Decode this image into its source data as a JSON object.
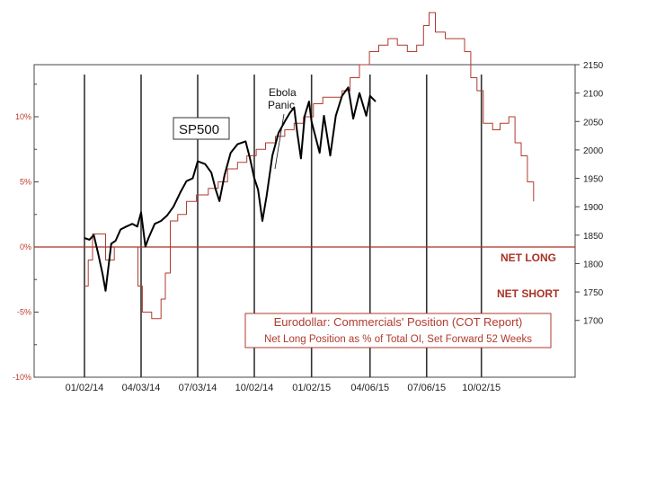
{
  "chart_data": {
    "type": "line",
    "title": "",
    "x_tick_labels": [
      "01/02/14",
      "04/03/14",
      "07/03/14",
      "10/02/14",
      "01/02/15",
      "04/06/15",
      "07/06/15",
      "10/02/15"
    ],
    "left_axis": {
      "ticks": [
        10,
        5,
        0,
        -5,
        -10
      ],
      "tick_labels": [
        "10%",
        "5%",
        "0%",
        "-5%",
        "-10%"
      ],
      "ylim": [
        -10,
        14
      ]
    },
    "right_axis": {
      "ticks": [
        1700,
        1750,
        1800,
        1850,
        1900,
        1950,
        2000,
        2050,
        2100,
        2150
      ],
      "ylim": [
        1600,
        2150
      ]
    },
    "grid": "vertical lines at x tick labels",
    "zero_line_labels": {
      "above": "NET LONG",
      "below": "NET SHORT"
    },
    "annotations": [
      {
        "text_lines": [
          "Ebola",
          "Panic"
        ],
        "date": "10/15/14"
      }
    ],
    "series": [
      {
        "name": "SP500",
        "axis": "right",
        "color": "#000000",
        "x": [
          "01/02/14",
          "01/10/14",
          "01/17/14",
          "01/24/14",
          "01/31/14",
          "02/05/14",
          "02/14/14",
          "02/21/14",
          "03/01/14",
          "03/10/14",
          "03/20/14",
          "03/28/14",
          "04/03/14",
          "04/10/14",
          "04/15/14",
          "04/25/14",
          "05/05/14",
          "05/15/14",
          "05/25/14",
          "06/05/14",
          "06/15/14",
          "06/25/14",
          "07/03/14",
          "07/15/14",
          "07/25/14",
          "08/01/14",
          "08/07/14",
          "08/15/14",
          "08/25/14",
          "09/05/14",
          "09/18/14",
          "09/25/14",
          "10/02/14",
          "10/08/14",
          "10/15/14",
          "10/22/14",
          "10/31/14",
          "11/10/14",
          "11/20/14",
          "11/28/14",
          "12/05/14",
          "12/10/14",
          "12/16/14",
          "12/22/14",
          "12/29/14",
          "01/02/15",
          "01/15/15",
          "01/22/15",
          "02/01/15",
          "02/10/15",
          "02/20/15",
          "03/02/15",
          "03/10/15",
          "03/20/15",
          "03/31/15",
          "04/06/15",
          "04/15/15"
        ],
        "values": [
          1845,
          1842,
          1850,
          1818,
          1782,
          1752,
          1835,
          1840,
          1860,
          1865,
          1870,
          1865,
          1890,
          1830,
          1845,
          1870,
          1875,
          1885,
          1900,
          1925,
          1945,
          1950,
          1980,
          1975,
          1960,
          1930,
          1910,
          1955,
          1995,
          2010,
          2015,
          1985,
          1950,
          1930,
          1875,
          1920,
          1990,
          2030,
          2050,
          2065,
          2075,
          2030,
          1985,
          2060,
          2085,
          2050,
          1995,
          2060,
          1990,
          2060,
          2095,
          2110,
          2055,
          2100,
          2060,
          2095,
          2085
        ]
      },
      {
        "name": "Eurodollar: Commercials' Position (COT Report)",
        "axis": "left",
        "color": "#b03a2e",
        "x": [
          "01/02/14",
          "01/08/14",
          "01/15/14",
          "01/22/14",
          "02/05/14",
          "02/12/14",
          "02/19/14",
          "02/26/14",
          "03/05/14",
          "03/15/14",
          "03/22/14",
          "03/29/14",
          "04/05/14",
          "04/20/14",
          "05/05/14",
          "05/12/14",
          "05/20/14",
          "06/01/14",
          "06/15/14",
          "07/01/14",
          "07/20/14",
          "08/05/14",
          "08/20/14",
          "09/05/14",
          "09/20/14",
          "10/05/14",
          "10/20/14",
          "11/05/14",
          "11/20/14",
          "12/05/14",
          "12/20/14",
          "01/05/15",
          "01/20/15",
          "02/05/15",
          "02/20/15",
          "03/05/15",
          "03/20/15",
          "04/05/15",
          "04/20/15",
          "05/05/15",
          "05/20/15",
          "06/05/15",
          "06/20/15",
          "07/01/15",
          "07/10/15",
          "07/20/15",
          "08/05/15",
          "08/20/15",
          "09/05/15",
          "09/15/15",
          "09/25/15",
          "10/05/15",
          "10/20/15",
          "11/01/15",
          "11/15/15",
          "11/25/15",
          "12/05/15",
          "12/15/15",
          "12/25/15"
        ],
        "values": [
          -3,
          -1,
          1,
          1,
          -1,
          -1,
          0,
          0,
          0,
          0,
          0,
          -3,
          -5,
          -5.5,
          -4,
          -2,
          2,
          2.5,
          3.5,
          4,
          4.5,
          5,
          6,
          6.5,
          7,
          7.5,
          8,
          8.5,
          9,
          9.5,
          10,
          11,
          11.5,
          11.5,
          12,
          13,
          14,
          15,
          15.5,
          16,
          15.5,
          15,
          15.5,
          17,
          18,
          16.5,
          16,
          16,
          15,
          13,
          12,
          9.5,
          9,
          9.5,
          10,
          8,
          7,
          5,
          3.5
        ]
      }
    ]
  },
  "legend": {
    "title": "Eurodollar: Commercials' Position (COT Report)",
    "subtitle": "Net Long Position as % of Total OI, Set Forward 52 Weeks"
  },
  "labels": {
    "sp500": "SP500",
    "ebola_line1": "Ebola",
    "ebola_line2": "Panic",
    "net_long": "NET LONG",
    "net_short": "NET SHORT"
  },
  "colors": {
    "sp500": "#000000",
    "eurodollar": "#b03a2e",
    "zero_line": "#a93226",
    "grid": "#333333"
  }
}
